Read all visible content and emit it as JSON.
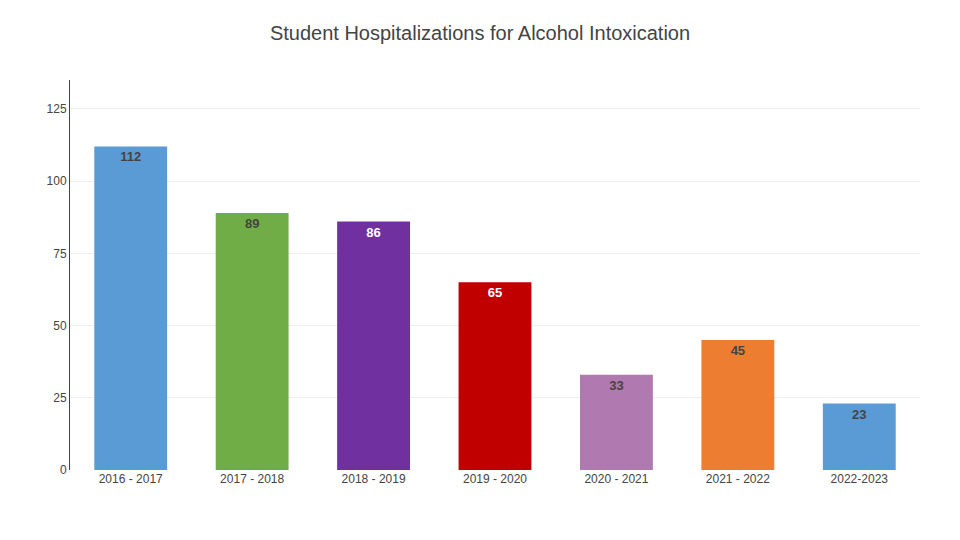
{
  "chart_data": {
    "type": "bar",
    "title": "Student Hospitalizations for Alcohol Intoxication",
    "categories": [
      "2016 - 2017",
      "2017 - 2018",
      "2018 - 2019",
      "2019 - 2020",
      "2020 - 2021",
      "2021 - 2022",
      "2022-2023"
    ],
    "values": [
      112,
      89,
      86,
      65,
      33,
      45,
      23
    ],
    "colors": [
      "#5b9bd5",
      "#70ad47",
      "#7030a0",
      "#c00000",
      "#b07ab0",
      "#ed7d31",
      "#5b9bd5"
    ],
    "ylim": [
      0,
      135
    ],
    "yticks": [
      0,
      25,
      50,
      75,
      100,
      125
    ],
    "grid": true,
    "data_labels": true
  }
}
